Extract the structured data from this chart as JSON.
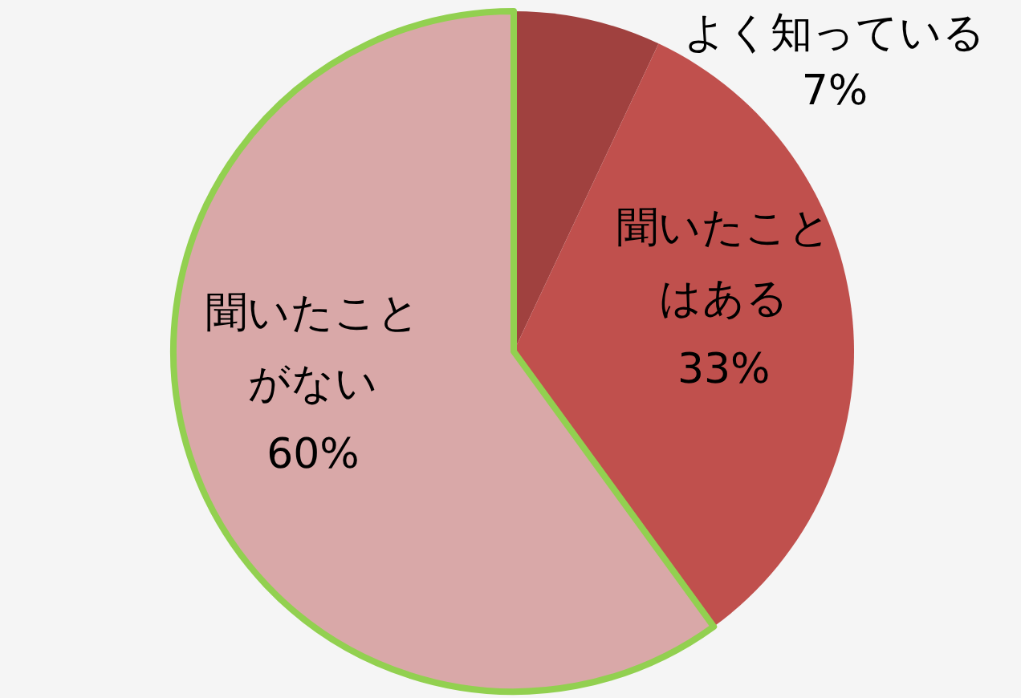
{
  "chart_data": {
    "type": "pie",
    "categories": [
      "よく知っている",
      "聞いたことはある",
      "聞いたことがない"
    ],
    "values": [
      7,
      33,
      60
    ],
    "colors": [
      "#a0413f",
      "#c0504d",
      "#d9a8a8"
    ],
    "value_labels": [
      "7%",
      "33%",
      "60%"
    ]
  }
}
